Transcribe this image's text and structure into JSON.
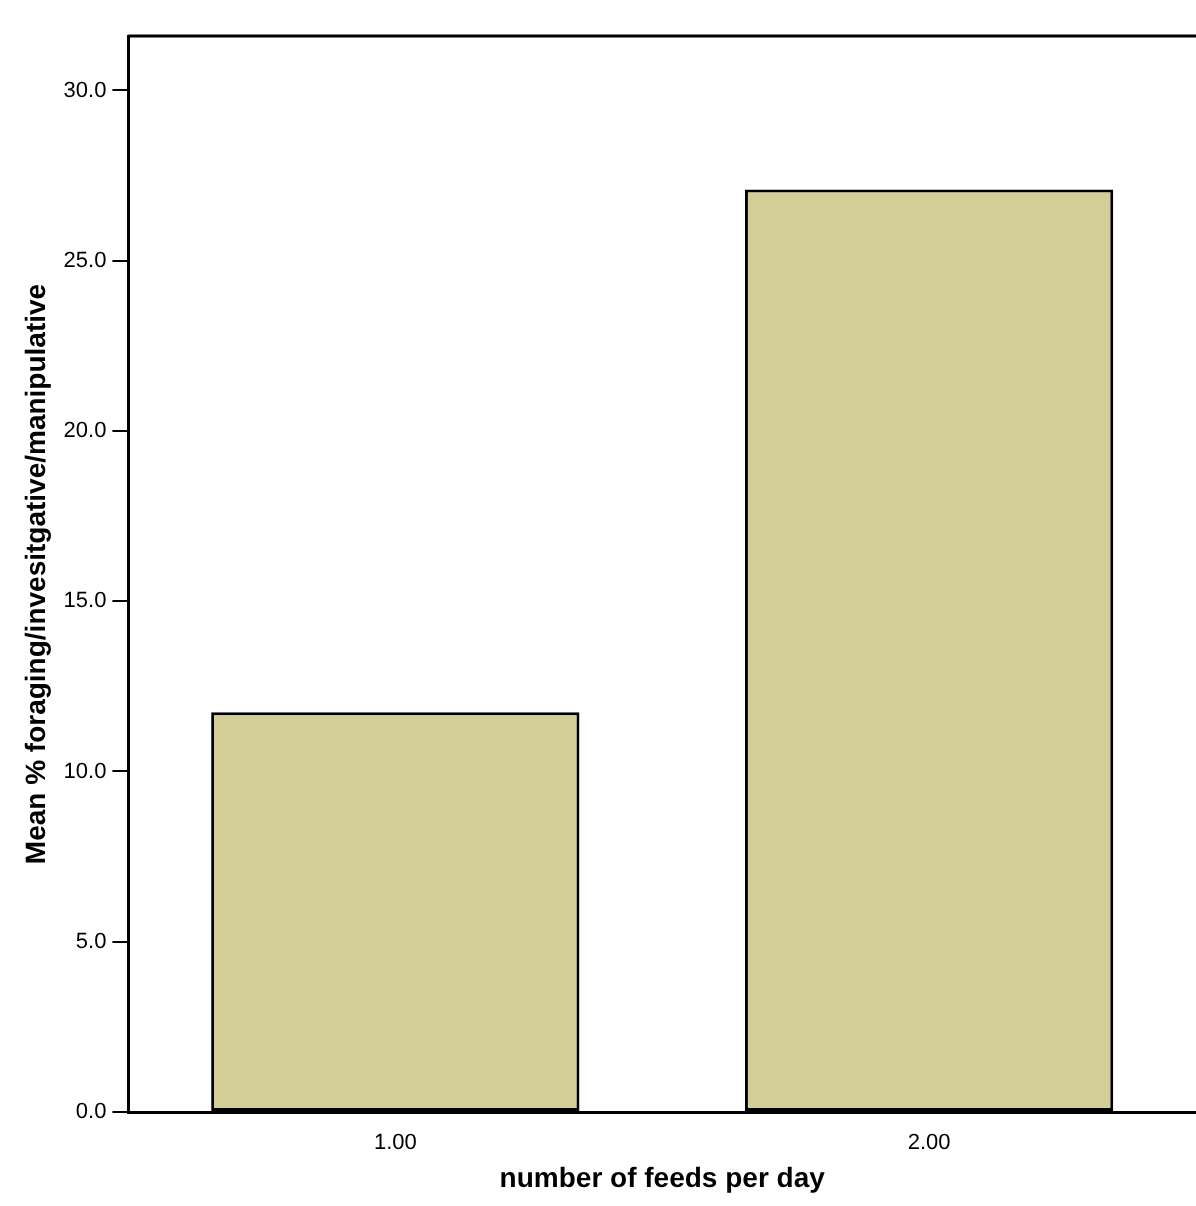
{
  "chart_data": {
    "type": "bar",
    "xlabel": "number of feeds per day",
    "ylabel": "Mean % foraging/invesitgative/manipulative",
    "categories": [
      "1.00",
      "2.00"
    ],
    "values": [
      11.74,
      27.09
    ],
    "color": "#d3cd98",
    "ylim": [
      0,
      31.6
    ],
    "yticks": [
      {
        "value": 0,
        "label": "0.0"
      },
      {
        "value": 5,
        "label": "5.0"
      },
      {
        "value": 10,
        "label": "10.0"
      },
      {
        "value": 15,
        "label": "15.0"
      },
      {
        "value": 20,
        "label": "20.0"
      },
      {
        "value": 25,
        "label": "25.0"
      },
      {
        "value": 30,
        "label": "30.0"
      }
    ],
    "grid": false,
    "legend": false
  }
}
